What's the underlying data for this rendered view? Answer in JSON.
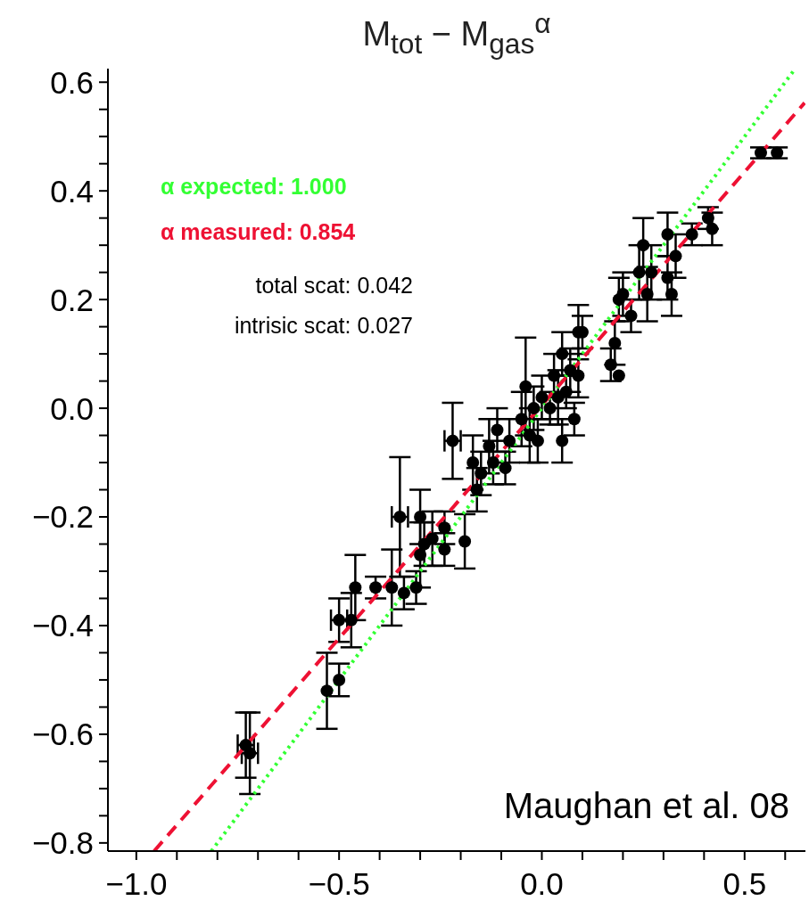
{
  "chart_data": {
    "type": "scatter",
    "title": "M$_{tot}$ − M$_{gas}$$^{α}$",
    "xlim": [
      -1.07,
      0.65
    ],
    "ylim": [
      -0.815,
      0.625
    ],
    "xticks": [
      {
        "value": -1.0,
        "label": "−1.0"
      },
      {
        "value": -0.9,
        "label": null
      },
      {
        "value": -0.8,
        "label": null
      },
      {
        "value": -0.7,
        "label": null
      },
      {
        "value": -0.6,
        "label": null
      },
      {
        "value": -0.5,
        "label": "−0.5"
      },
      {
        "value": -0.4,
        "label": null
      },
      {
        "value": -0.3,
        "label": null
      },
      {
        "value": -0.2,
        "label": null
      },
      {
        "value": -0.1,
        "label": null
      },
      {
        "value": 0,
        "label": "0.0"
      },
      {
        "value": 0.1,
        "label": null
      },
      {
        "value": 0.2,
        "label": null
      },
      {
        "value": 0.3,
        "label": null
      },
      {
        "value": 0.4,
        "label": null
      },
      {
        "value": 0.5,
        "label": "0.5"
      },
      {
        "value": 0.6,
        "label": null
      }
    ],
    "yticks": [
      {
        "value": -0.8,
        "label": "−0.8"
      },
      {
        "value": -0.75,
        "label": null
      },
      {
        "value": -0.7,
        "label": null
      },
      {
        "value": -0.65,
        "label": null
      },
      {
        "value": -0.6,
        "label": "−0.6"
      },
      {
        "value": -0.55,
        "label": null
      },
      {
        "value": -0.5,
        "label": null
      },
      {
        "value": -0.45,
        "label": null
      },
      {
        "value": -0.4,
        "label": "−0.4"
      },
      {
        "value": -0.35,
        "label": null
      },
      {
        "value": -0.3,
        "label": null
      },
      {
        "value": -0.25,
        "label": null
      },
      {
        "value": -0.2,
        "label": "−0.2"
      },
      {
        "value": -0.15,
        "label": null
      },
      {
        "value": -0.1,
        "label": null
      },
      {
        "value": -0.05,
        "label": null
      },
      {
        "value": 0,
        "label": "0.0"
      },
      {
        "value": 0.05,
        "label": null
      },
      {
        "value": 0.1,
        "label": null
      },
      {
        "value": 0.15,
        "label": null
      },
      {
        "value": 0.2,
        "label": "0.2"
      },
      {
        "value": 0.25,
        "label": null
      },
      {
        "value": 0.3,
        "label": null
      },
      {
        "value": 0.35,
        "label": null
      },
      {
        "value": 0.4,
        "label": "0.4"
      },
      {
        "value": 0.45,
        "label": null
      },
      {
        "value": 0.5,
        "label": null
      },
      {
        "value": 0.55,
        "label": null
      },
      {
        "value": 0.6,
        "label": "0.6"
      }
    ],
    "grid": false,
    "legend": "top left",
    "marker": "circle",
    "annotations": [
      "total scat: 0.042",
      "intrisic scat: 0.027",
      "Maughan et al. 08"
    ],
    "series": [
      {
        "color": "#000000",
        "x": [
          -0.73,
          -0.72,
          -0.53,
          -0.5,
          -0.5,
          -0.47,
          -0.46,
          -0.41,
          -0.37,
          -0.35,
          -0.34,
          -0.31,
          -0.3,
          -0.3,
          -0.29,
          -0.27,
          -0.24,
          -0.24,
          -0.22,
          -0.19,
          -0.17,
          -0.16,
          -0.15,
          -0.13,
          -0.12,
          -0.11,
          -0.09,
          -0.08,
          -0.05,
          -0.04,
          -0.03,
          -0.02,
          -0.01,
          0.0,
          0.02,
          0.03,
          0.04,
          0.05,
          0.05,
          0.06,
          0.07,
          0.08,
          0.09,
          0.1,
          0.09,
          0.17,
          0.18,
          0.19,
          0.19,
          0.2,
          0.22,
          0.24,
          0.25,
          0.27,
          0.26,
          0.31,
          0.31,
          0.32,
          0.33,
          0.37,
          0.41,
          0.42,
          0.54,
          0.58
        ],
        "values": [
          -0.62,
          -0.635,
          -0.52,
          -0.5,
          -0.39,
          -0.39,
          -0.33,
          -0.33,
          -0.33,
          -0.2,
          -0.34,
          -0.33,
          -0.27,
          -0.2,
          -0.25,
          -0.24,
          -0.22,
          -0.26,
          -0.06,
          -0.245,
          -0.1,
          -0.15,
          -0.12,
          -0.07,
          -0.1,
          -0.04,
          -0.11,
          -0.06,
          -0.02,
          0.04,
          -0.05,
          0.0,
          -0.06,
          0.02,
          0.0,
          0.06,
          0.02,
          -0.06,
          0.1,
          0.03,
          0.07,
          -0.02,
          0.14,
          0.14,
          0.06,
          0.08,
          0.12,
          0.06,
          0.2,
          0.21,
          0.17,
          0.25,
          0.3,
          0.25,
          0.21,
          0.32,
          0.24,
          0.21,
          0.28,
          0.32,
          0.35,
          0.33,
          0.47,
          0.47
        ],
        "errors": [
          0.06,
          0.075,
          0.07,
          0.03,
          0.04,
          0.05,
          0.06,
          0.02,
          0.07,
          0.11,
          0.03,
          0.03,
          0.06,
          0.05,
          0.04,
          0.05,
          0.03,
          0.03,
          0.07,
          0.05,
          0.05,
          0.04,
          0.04,
          0.05,
          0.04,
          0.04,
          0.03,
          0.04,
          0.05,
          0.09,
          0.05,
          0.04,
          0.04,
          0.04,
          0.03,
          0.04,
          0.05,
          0.04,
          0.04,
          0.03,
          0.04,
          0.03,
          0.05,
          0.03,
          0.04,
          0.03,
          0.04,
          null,
          0.04,
          0.04,
          0.03,
          0.05,
          0.05,
          0.05,
          0.05,
          0.04,
          0.04,
          0.04,
          0.04,
          0.02,
          0.02,
          0.03,
          0.01,
          0.01
        ],
        "xerrors": [
          0.02,
          0.02,
          null,
          null,
          0.02,
          null,
          null,
          null,
          null,
          0.02,
          null,
          null,
          null,
          null,
          null,
          null,
          null,
          null,
          0.02,
          null,
          null,
          null,
          null,
          null,
          null,
          null,
          null,
          null,
          null,
          null,
          null,
          null,
          null,
          null,
          null,
          null,
          null,
          null,
          null,
          null,
          null,
          null,
          null,
          null,
          null,
          null,
          null,
          null,
          null,
          null,
          null,
          null,
          null,
          null,
          null,
          null,
          null,
          null,
          null,
          null,
          null,
          null,
          null,
          null
        ]
      },
      {
        "type": "line",
        "name": "α expected: 1.000",
        "color": "#33ff33",
        "line_style": "dotted",
        "marker": "none",
        "x": [
          -0.815,
          0.625
        ],
        "values": [
          -0.815,
          0.625
        ]
      },
      {
        "type": "line",
        "name": "α measured: 0.854",
        "color": "#ee1133",
        "line_style": "dashed",
        "marker": "none",
        "x": [
          -0.956,
          0.648
        ],
        "values": [
          -0.815,
          0.562
        ]
      }
    ]
  }
}
